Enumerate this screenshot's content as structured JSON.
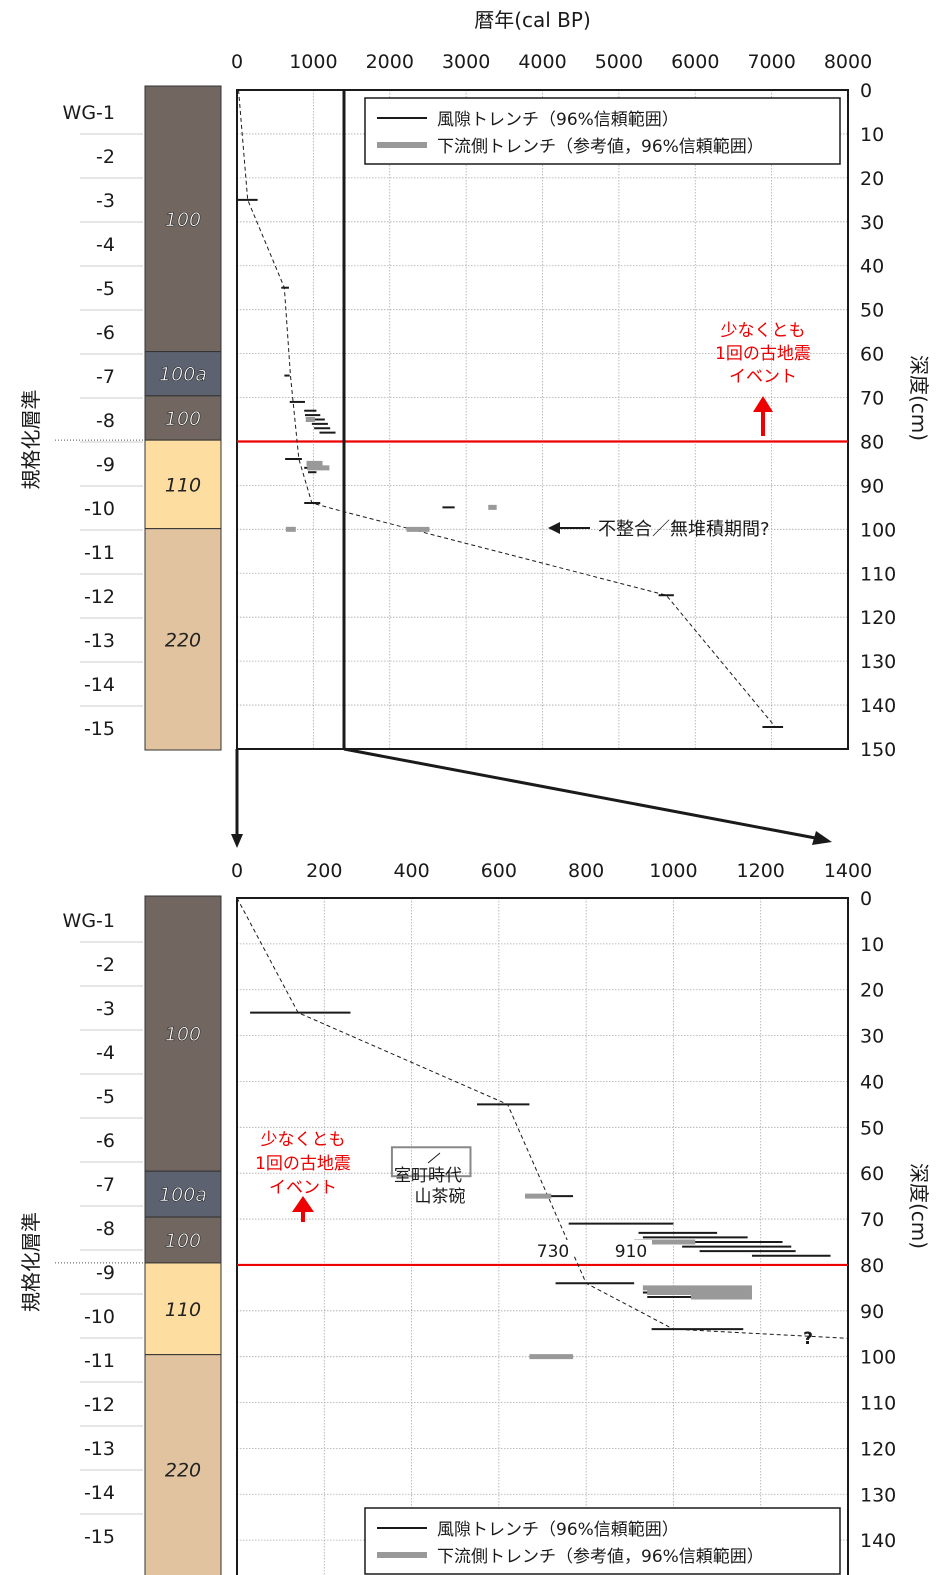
{
  "chart_data": [
    {
      "type": "scatter",
      "panel": "overview",
      "title": "暦年(cal BP)",
      "xlabel": "暦年(cal BP)",
      "ylabel": "深度(cm)",
      "left_label": "規格化層準",
      "xlim": [
        0,
        8000
      ],
      "ylim": [
        0,
        150
      ],
      "x_ticks": [
        "0",
        "1000",
        "2000",
        "3000",
        "4000",
        "5000",
        "6000",
        "7000",
        "8000"
      ],
      "y_ticks": [
        "0",
        "10",
        "20",
        "30",
        "40",
        "50",
        "60",
        "70",
        "80",
        "90",
        "100",
        "110",
        "120",
        "130",
        "140",
        "150"
      ],
      "y_reversed": true,
      "grid": true,
      "legend_placement": "top-right",
      "series": [
        {
          "name": "風隙トレンチ（96%信頼範囲）",
          "color": "#1a1a1a",
          "ranges": [
            [
              0,
              270,
              25
            ],
            [
              580,
              680,
              45
            ],
            [
              620,
              690,
              65
            ],
            [
              690,
              890,
              71
            ],
            [
              880,
              1040,
              73
            ],
            [
              890,
              1090,
              74
            ],
            [
              930,
              1150,
              75
            ],
            [
              980,
              1190,
              76
            ],
            [
              1010,
              1220,
              77
            ],
            [
              1080,
              1290,
              78
            ],
            [
              630,
              850,
              84
            ],
            [
              880,
              1000,
              86
            ],
            [
              930,
              1040,
              87
            ],
            [
              880,
              1090,
              94
            ],
            [
              2690,
              2850,
              95
            ],
            [
              5520,
              5720,
              115
            ],
            [
              6880,
              7150,
              145
            ]
          ]
        },
        {
          "name": "下流側トレンチ（参考値，96%信頼範囲）",
          "color": "#999999",
          "ranges": [
            [
              900,
              1020,
              75
            ],
            [
              910,
              1120,
              85
            ],
            [
              920,
              1210,
              86
            ],
            [
              640,
              770,
              100
            ],
            [
              2220,
              2520,
              100
            ],
            [
              3290,
              3400,
              95
            ]
          ]
        }
      ],
      "dashed_curve": [
        [
          20,
          0
        ],
        [
          140,
          25
        ],
        [
          620,
          45
        ],
        [
          700,
          65
        ],
        [
          810,
          84
        ],
        [
          980,
          94
        ],
        [
          1400,
          96
        ],
        [
          5620,
          115
        ],
        [
          7050,
          145
        ]
      ],
      "event_line_depth": 80,
      "annotations": [
        "少なくとも",
        "1回の古地震",
        "イベント",
        "不整合／無堆積期間?"
      ]
    },
    {
      "type": "scatter",
      "panel": "detail",
      "xlabel": "",
      "ylabel": "深度(cm)",
      "left_label": "規格化層準",
      "xlim": [
        0,
        1400
      ],
      "ylim": [
        0,
        150
      ],
      "x_ticks": [
        "0",
        "200",
        "400",
        "600",
        "800",
        "1000",
        "1200",
        "1400"
      ],
      "y_ticks": [
        "0",
        "10",
        "20",
        "30",
        "40",
        "50",
        "60",
        "70",
        "80",
        "90",
        "100",
        "110",
        "120",
        "130",
        "140",
        "150"
      ],
      "y_reversed": true,
      "grid": true,
      "legend_placement": "bottom-right",
      "series": [
        {
          "name": "風隙トレンチ（96%信頼範囲）",
          "color": "#1a1a1a",
          "ranges": [
            [
              30,
              260,
              25
            ],
            [
              550,
              670,
              45
            ],
            [
              660,
              770,
              65
            ],
            [
              760,
              1000,
              71
            ],
            [
              920,
              1100,
              73
            ],
            [
              930,
              1170,
              74
            ],
            [
              990,
              1250,
              75
            ],
            [
              1020,
              1270,
              76
            ],
            [
              1060,
              1280,
              77
            ],
            [
              1180,
              1360,
              78
            ],
            [
              730,
              910,
              84
            ],
            [
              930,
              1070,
              86
            ],
            [
              940,
              1080,
              87
            ],
            [
              950,
              1160,
              94
            ]
          ]
        },
        {
          "name": "下流側トレンチ（参考値，96%信頼範囲）",
          "color": "#999999",
          "ranges": [
            [
              660,
              720,
              65
            ],
            [
              910,
              1050,
              75
            ],
            [
              930,
              1180,
              85
            ],
            [
              940,
              1180,
              86
            ],
            [
              1040,
              1180,
              87
            ],
            [
              670,
              770,
              100
            ]
          ]
        }
      ],
      "dashed_curve": [
        [
          0,
          0
        ],
        [
          140,
          25
        ],
        [
          620,
          45
        ],
        [
          800,
          84
        ],
        [
          1000,
          94
        ],
        [
          1400,
          96
        ]
      ],
      "event_line_depth": 80,
      "annotations": [
        "少なくとも",
        "1回の古地震",
        "イベント",
        "室町時代",
        "山茶碗",
        "730",
        "910",
        "?"
      ],
      "pottery_box": [
        355,
        55,
        535,
        60
      ]
    }
  ],
  "column": {
    "labels": [
      "WG-1",
      "-2",
      "-3",
      "-4",
      "-5",
      "-6",
      "-7",
      "-8",
      "-9",
      "-10",
      "-11",
      "-12",
      "-13",
      "-14",
      "-15"
    ],
    "units": [
      {
        "label": "100",
        "top": 0,
        "bottom": 60,
        "color": "#716660",
        "text_color": "#ffffff"
      },
      {
        "label": "100a",
        "top": 60,
        "bottom": 70,
        "color": "#5d6270",
        "text_color": "#ffffff"
      },
      {
        "label": "100",
        "top": 70,
        "bottom": 80,
        "color": "#716660",
        "text_color": "#ffffff"
      },
      {
        "label": "110",
        "top": 80,
        "bottom": 100,
        "color": "#fedea0",
        "text_color": "#222222"
      },
      {
        "label": "220",
        "top": 100,
        "bottom": 150,
        "color": "#e1c49f",
        "text_color": "#222222"
      }
    ]
  },
  "colors": {
    "event": "#ee0000",
    "black_series": "#1a1a1a",
    "gray_series": "#999999",
    "grid": "#aaaaaa"
  }
}
